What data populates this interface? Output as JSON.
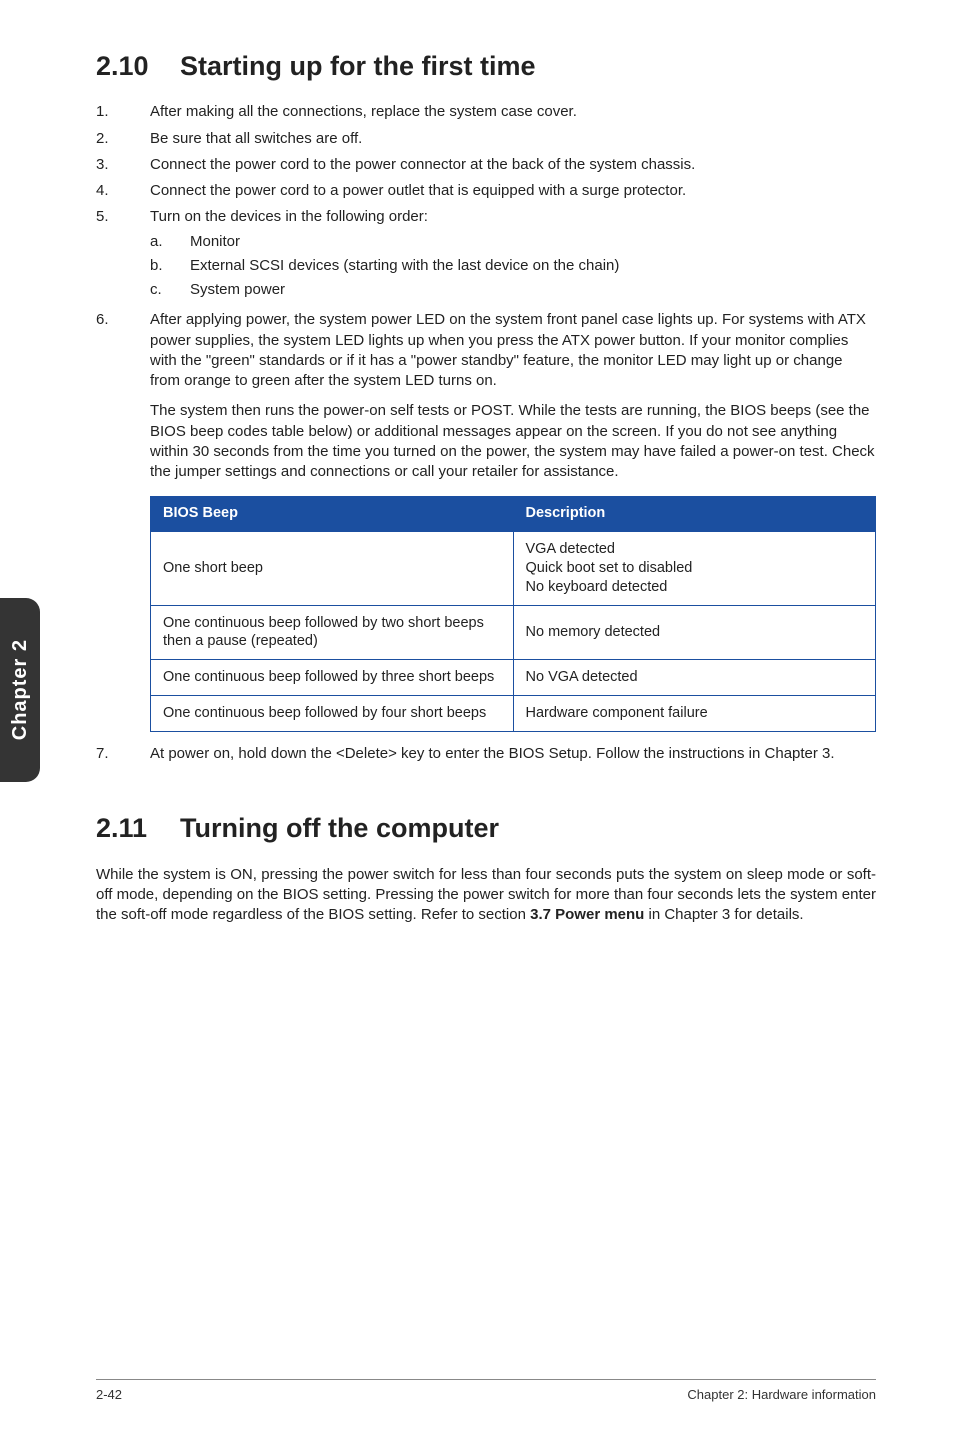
{
  "sideTab": "Chapter 2",
  "section210": {
    "num": "2.10",
    "title": "Starting up for the first time",
    "list": [
      {
        "n": "1.",
        "t": "After making all the connections, replace the system case cover."
      },
      {
        "n": "2.",
        "t": "Be sure that all switches are off."
      },
      {
        "n": "3.",
        "t": "Connect the power cord to the power connector at the back of the system chassis."
      },
      {
        "n": "4.",
        "t": "Connect the power cord to a power outlet that is equipped with a surge protector."
      },
      {
        "n": "5.",
        "t": "Turn on the devices in the following order:",
        "sub": [
          {
            "sn": "a.",
            "st": "Monitor"
          },
          {
            "sn": "b.",
            "st": "External SCSI devices (starting with the last device on the chain)"
          },
          {
            "sn": "c.",
            "st": "System power"
          }
        ]
      },
      {
        "n": "6.",
        "t": "After applying power, the system power LED on the system front panel case lights up. For systems with ATX power supplies, the system LED lights up when you press the ATX power button. If your monitor complies with the \"green\" standards or if it has a \"power standby\" feature, the monitor LED may light up or change from orange to green after the system LED turns on.",
        "extra": "The system then runs the power-on self tests or POST. While the tests are running, the BIOS beeps (see the BIOS beep codes table below) or additional messages appear on the screen. If you do not see anything within 30 seconds from the time you turned on the power, the system may have failed a power-on test. Check the jumper settings and connections or call your retailer for assistance."
      }
    ],
    "table": {
      "head": [
        "BIOS Beep",
        "Description"
      ],
      "rows": [
        [
          "One short beep",
          "VGA detected\nQuick boot set to disabled\nNo keyboard detected"
        ],
        [
          "One continuous beep followed by two short beeps then a pause (repeated)",
          "No memory detected"
        ],
        [
          "One continuous beep followed by three short beeps",
          "No VGA detected"
        ],
        [
          "One continuous beep followed by four short beeps",
          "Hardware component failure"
        ]
      ]
    },
    "item7": {
      "n": "7.",
      "t": "At power on, hold down the <Delete> key to enter the BIOS Setup. Follow the instructions in Chapter 3."
    }
  },
  "section211": {
    "num": "2.11",
    "title": "Turning off the computer",
    "body_pre": "While the system is ON, pressing the power switch for less than four seconds puts the system on sleep mode or soft-off mode, depending on the BIOS setting. Pressing the power switch for more than four seconds lets the system enter the soft-off mode regardless of the BIOS setting. Refer to section ",
    "body_bold": "3.7 Power menu",
    "body_post": " in Chapter 3 for details."
  },
  "footer": {
    "left": "2-42",
    "right": "Chapter 2: Hardware information"
  }
}
